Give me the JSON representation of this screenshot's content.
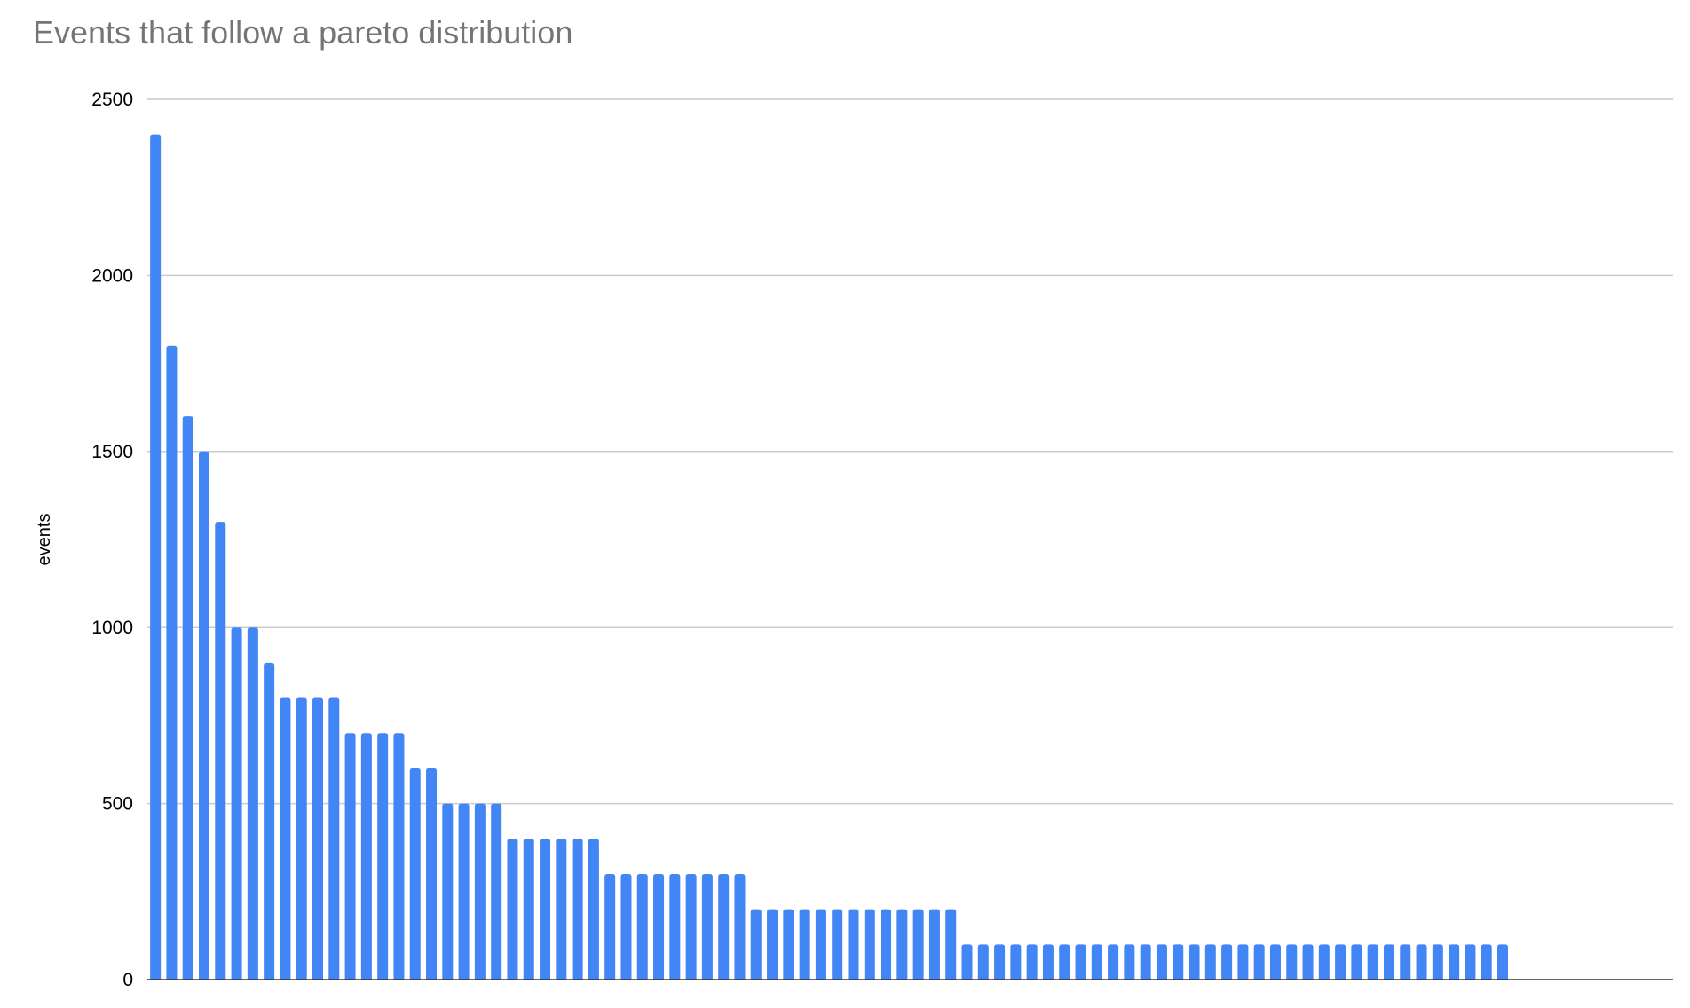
{
  "chart_data": {
    "type": "bar",
    "title": "Events that follow a pareto distribution",
    "xlabel": "",
    "ylabel": "events",
    "ylim": [
      0,
      2500
    ],
    "yticks": [
      0,
      500,
      1000,
      1500,
      2000,
      2500
    ],
    "grid": true,
    "legend": "none",
    "bar_color": "#4285f4",
    "values": [
      2400,
      1800,
      1600,
      1500,
      1300,
      1000,
      1000,
      900,
      800,
      800,
      800,
      800,
      700,
      700,
      700,
      700,
      600,
      600,
      500,
      500,
      500,
      500,
      400,
      400,
      400,
      400,
      400,
      400,
      300,
      300,
      300,
      300,
      300,
      300,
      300,
      300,
      300,
      200,
      200,
      200,
      200,
      200,
      200,
      200,
      200,
      200,
      200,
      200,
      200,
      200,
      100,
      100,
      100,
      100,
      100,
      100,
      100,
      100,
      100,
      100,
      100,
      100,
      100,
      100,
      100,
      100,
      100,
      100,
      100,
      100,
      100,
      100,
      100,
      100,
      100,
      100,
      100,
      100,
      100,
      100,
      100,
      100,
      100,
      100
    ]
  }
}
